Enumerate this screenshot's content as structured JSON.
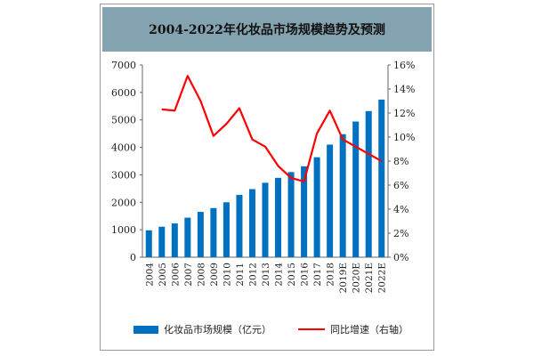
{
  "chart_data": {
    "type": "bar+line",
    "title": "2004-2022年化妆品市场规模趋势及预测",
    "categories": [
      "2004",
      "2005",
      "2006",
      "2007",
      "2008",
      "2009",
      "2010",
      "2011",
      "2012",
      "2013",
      "2014",
      "2015",
      "2016",
      "2017",
      "2018",
      "2019E",
      "2020E",
      "2021E",
      "2022E"
    ],
    "series": [
      {
        "name": "化妆品市场规模（亿元）",
        "type": "bar",
        "axis": "left",
        "color": "#0070c0",
        "values": [
          980,
          1110,
          1230,
          1440,
          1650,
          1790,
          2000,
          2270,
          2480,
          2710,
          2890,
          3100,
          3310,
          3640,
          4100,
          4480,
          4940,
          5320,
          5740
        ]
      },
      {
        "name": "同比增速（右轴）",
        "type": "line",
        "axis": "right",
        "color": "#ff0000",
        "values": [
          null,
          12.3,
          12.2,
          15.1,
          13.0,
          10.1,
          11.1,
          12.4,
          9.8,
          9.2,
          7.6,
          6.6,
          6.3,
          10.3,
          12.2,
          9.8,
          9.2,
          8.6,
          8.0
        ]
      }
    ],
    "left_axis": {
      "ylim": [
        0,
        7000
      ],
      "ticks": [
        "0",
        "1000",
        "2000",
        "3000",
        "4000",
        "5000",
        "6000",
        "7000"
      ]
    },
    "right_axis": {
      "ylim": [
        0,
        16
      ],
      "ticks": [
        "0%",
        "2%",
        "4%",
        "6%",
        "8%",
        "10%",
        "12%",
        "14%",
        "16%"
      ]
    },
    "grid": false,
    "legend": "bottom",
    "title_band_color": "#84a3b0"
  }
}
